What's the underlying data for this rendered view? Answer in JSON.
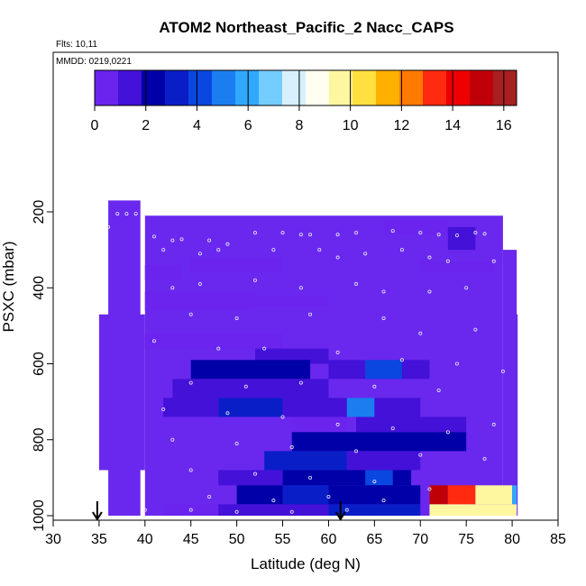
{
  "chart_data": {
    "type": "heatmap",
    "title": "ATOM2 Northeast_Pacific_2 Nacc_CAPS",
    "notes": [
      "Flts: 10,11",
      "MMDD: 0219,0221"
    ],
    "xlabel": "Latitude (deg N)",
    "ylabel": "PSXC (mbar)",
    "xlim": [
      30,
      85
    ],
    "ylim": [
      1000,
      100
    ],
    "y_inverted": true,
    "x_ticks": [
      "30",
      "35",
      "40",
      "45",
      "50",
      "55",
      "60",
      "65",
      "70",
      "75",
      "80",
      "85"
    ],
    "y_ticks": [
      "200",
      "400",
      "600",
      "800",
      "1000"
    ],
    "colorbar": {
      "range": [
        0,
        16.5
      ],
      "tick_labels": [
        "0",
        "2",
        "4",
        "6",
        "8",
        "10",
        "12",
        "14",
        "16"
      ],
      "colors": [
        "#6a24ee",
        "#4411d8",
        "#0000a8",
        "#0a1ec8",
        "#0a46e0",
        "#1a7ef0",
        "#30a8ff",
        "#74ccff",
        "#d6f0ff",
        "#fffef0",
        "#fff6a0",
        "#ffe040",
        "#ffb000",
        "#ff7a00",
        "#ff2a10",
        "#ee0000",
        "#c00008",
        "#a82020"
      ]
    },
    "markers": [
      {
        "label": "arrow-left",
        "x": 34.8
      },
      {
        "label": "arrow-right",
        "x": 61.3
      }
    ],
    "background_color": "#6a28ee",
    "columns": [
      {
        "x": 36.5,
        "top": 165
      },
      {
        "x": 37.5,
        "top": 190
      },
      {
        "x": 38.5,
        "top": 190
      },
      {
        "x": 39.5,
        "top": 190
      },
      {
        "x": 40.5,
        "top": 210
      },
      {
        "x": 41.5,
        "top": 210
      },
      {
        "x": 58.5,
        "top": 210
      },
      {
        "x": 79.0,
        "top": 210
      },
      {
        "x": 80.0,
        "top": 470
      }
    ],
    "bands": [
      {
        "lat": [
          40,
          44
        ],
        "p": [
          340,
          380
        ],
        "value": 0.9
      },
      {
        "lat": [
          45,
          55
        ],
        "p": [
          320,
          360
        ],
        "value": 0.4
      },
      {
        "lat": [
          40,
          52
        ],
        "p": [
          410,
          460
        ],
        "value": 0.6
      },
      {
        "lat": [
          52,
          60
        ],
        "p": [
          420,
          450
        ],
        "value": 0.4
      },
      {
        "lat": [
          66,
          73
        ],
        "p": [
          220,
          260
        ],
        "value": 0.8
      },
      {
        "lat": [
          73,
          76
        ],
        "p": [
          240,
          300
        ],
        "value": 1.2
      },
      {
        "lat": [
          70,
          78
        ],
        "p": [
          330,
          360
        ],
        "value": 0.5
      },
      {
        "lat": [
          40,
          55
        ],
        "p": [
          520,
          560
        ],
        "value": 0.7
      },
      {
        "lat": [
          52,
          60
        ],
        "p": [
          560,
          600
        ],
        "value": 1.6
      },
      {
        "lat": [
          45,
          58
        ],
        "p": [
          590,
          640
        ],
        "value": 2.2
      },
      {
        "lat": [
          60,
          64
        ],
        "p": [
          590,
          640
        ],
        "value": 1.8
      },
      {
        "lat": [
          64,
          68
        ],
        "p": [
          590,
          640
        ],
        "value": 4.5
      },
      {
        "lat": [
          68,
          71
        ],
        "p": [
          590,
          640
        ],
        "value": 1.5
      },
      {
        "lat": [
          43,
          60
        ],
        "p": [
          640,
          690
        ],
        "value": 1.0
      },
      {
        "lat": [
          42,
          48
        ],
        "p": [
          690,
          740
        ],
        "value": 1.2
      },
      {
        "lat": [
          48,
          55
        ],
        "p": [
          690,
          740
        ],
        "value": 2.8
      },
      {
        "lat": [
          55,
          62
        ],
        "p": [
          690,
          740
        ],
        "value": 1.6
      },
      {
        "lat": [
          62,
          65
        ],
        "p": [
          690,
          740
        ],
        "value": 4.8
      },
      {
        "lat": [
          65,
          70
        ],
        "p": [
          690,
          740
        ],
        "value": 1.8
      },
      {
        "lat": [
          56,
          62
        ],
        "p": [
          740,
          780
        ],
        "value": 0.9
      },
      {
        "lat": [
          63,
          75
        ],
        "p": [
          740,
          780
        ],
        "value": 1.0
      },
      {
        "lat": [
          56,
          75
        ],
        "p": [
          780,
          830
        ],
        "value": 2.5
      },
      {
        "lat": [
          53,
          62
        ],
        "p": [
          830,
          880
        ],
        "value": 3.4
      },
      {
        "lat": [
          62,
          70
        ],
        "p": [
          830,
          880
        ],
        "value": 1.4
      },
      {
        "lat": [
          48,
          55
        ],
        "p": [
          880,
          920
        ],
        "value": 1.2
      },
      {
        "lat": [
          55,
          69
        ],
        "p": [
          880,
          920
        ],
        "value": 2.6
      },
      {
        "lat": [
          64,
          67
        ],
        "p": [
          880,
          920
        ],
        "value": 4.5
      },
      {
        "lat": [
          50,
          70
        ],
        "p": [
          920,
          970
        ],
        "value": 2.0
      },
      {
        "lat": [
          55,
          60
        ],
        "p": [
          920,
          970
        ],
        "value": 3.2
      },
      {
        "lat": [
          42,
          48
        ],
        "p": [
          970,
          1000
        ],
        "value": 0.6
      },
      {
        "lat": [
          48,
          60
        ],
        "p": [
          970,
          1000
        ],
        "value": 1.8
      },
      {
        "lat": [
          60,
          70
        ],
        "p": [
          970,
          1000
        ],
        "value": 3.5
      },
      {
        "lat": [
          71,
          73
        ],
        "p": [
          920,
          970
        ],
        "value": 15.0
      },
      {
        "lat": [
          73,
          76
        ],
        "p": [
          920,
          970
        ],
        "value": 13.5
      },
      {
        "lat": [
          76,
          80
        ],
        "p": [
          920,
          970
        ],
        "value": 9.8
      },
      {
        "lat": [
          80,
          80.5
        ],
        "p": [
          920,
          970
        ],
        "value": 6.0
      },
      {
        "lat": [
          71,
          80.5
        ],
        "p": [
          970,
          1000
        ],
        "value": 9.6
      }
    ]
  }
}
